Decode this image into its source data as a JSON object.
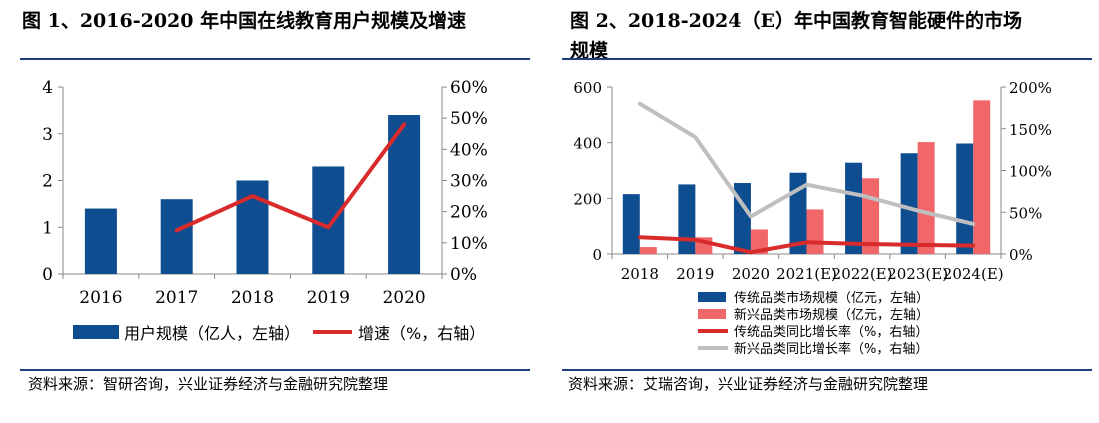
{
  "colors": {
    "bar_blue": "#0e4d8f",
    "bar_pink": "#f06669",
    "line_red": "#d92b2b",
    "line_gray": "#bfbfbf",
    "rule_navy": "#1f3f7f"
  },
  "chart_data": [
    {
      "type": "bar",
      "title": "图 1、2016-2020 年中国在线教育用户规模及增速",
      "categories": [
        "2016",
        "2017",
        "2018",
        "2019",
        "2020"
      ],
      "series": [
        {
          "name": "用户规模（亿人，左轴）",
          "kind": "bar",
          "axis": "left",
          "values": [
            1.4,
            1.6,
            2.0,
            2.3,
            3.4
          ]
        },
        {
          "name": "增速（%，右轴）",
          "kind": "line",
          "axis": "right",
          "values": [
            null,
            14,
            25,
            15,
            48
          ]
        }
      ],
      "y_left": {
        "min": 0,
        "max": 4,
        "ticks": [
          "0",
          "1",
          "2",
          "3",
          "4"
        ]
      },
      "y_right": {
        "min": 0,
        "max": 60,
        "ticks": [
          "0%",
          "10%",
          "20%",
          "30%",
          "40%",
          "50%",
          "60%"
        ]
      },
      "grid": false,
      "legend_position": "bottom",
      "source": "资料来源：智研咨询，兴业证券经济与金融研究院整理"
    },
    {
      "type": "bar",
      "title": "图 2、2018-2024（E）年中国教育智能硬件的市场\n规模",
      "categories": [
        "2018",
        "2019",
        "2020",
        "2021(E)",
        "2022(E)",
        "2023(E)",
        "2024(E)"
      ],
      "series": [
        {
          "name": "传统品类市场规模（亿元，左轴）",
          "kind": "bar",
          "axis": "left",
          "values": [
            215,
            250,
            255,
            292,
            328,
            362,
            397
          ]
        },
        {
          "name": "新兴品类市场规模（亿元，左轴）",
          "kind": "bar",
          "axis": "left",
          "values": [
            25,
            60,
            88,
            160,
            272,
            402,
            552
          ]
        },
        {
          "name": "传统品类同比增长率（%，右轴）",
          "kind": "line",
          "axis": "right",
          "values": [
            20,
            17,
            2,
            14,
            12,
            11,
            10
          ]
        },
        {
          "name": "新兴品类同比增长率（%，右轴）",
          "kind": "line",
          "axis": "right",
          "values": [
            180,
            140,
            45,
            83,
            70,
            52,
            36
          ]
        }
      ],
      "y_left": {
        "min": 0,
        "max": 600,
        "ticks": [
          "0",
          "200",
          "400",
          "600"
        ]
      },
      "y_right": {
        "min": 0,
        "max": 200,
        "ticks": [
          "0%",
          "50%",
          "100%",
          "150%",
          "200%"
        ]
      },
      "grid": false,
      "legend_position": "bottom",
      "source": "资料来源：艾瑞咨询，兴业证券经济与金融研究院整理"
    }
  ]
}
